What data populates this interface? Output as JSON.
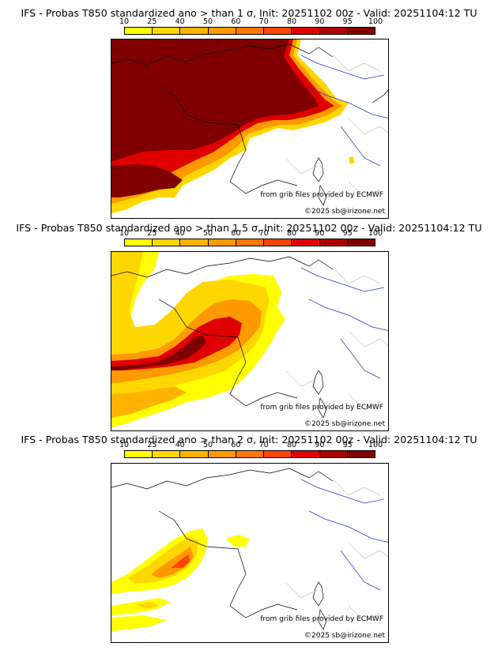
{
  "colorbar": {
    "ticks": [
      "10",
      "25",
      "40",
      "50",
      "60",
      "70",
      "80",
      "90",
      "95",
      "100"
    ],
    "colors": [
      "#ffff00",
      "#ffd700",
      "#ffb300",
      "#ff9900",
      "#ff7700",
      "#ff4400",
      "#e00000",
      "#b00000",
      "#800000"
    ]
  },
  "panels": [
    {
      "title": "IFS - Probas T850  standardized ano > than 1 σ, Init: 20251102 00z - Valid: 20251104:12 TU",
      "credit_source": "from grib files provided by ECMWF",
      "credit_copyright": "©2025 sb@irizone.net"
    },
    {
      "title": "IFS - Probas T850  standardized ano > than 1.5 σ, Init: 20251102 00z - Valid: 20251104:12 TU",
      "credit_source": "from grib files provided by ECMWF",
      "credit_copyright": "©2025 sb@irizone.net"
    },
    {
      "title": "IFS - Probas T850  standardized ano > than 2 σ, Init: 20251102 00z - Valid: 20251104:12 TU",
      "credit_source": "from grib files provided by ECMWF",
      "credit_copyright": "©2025 sb@irizone.net"
    }
  ]
}
